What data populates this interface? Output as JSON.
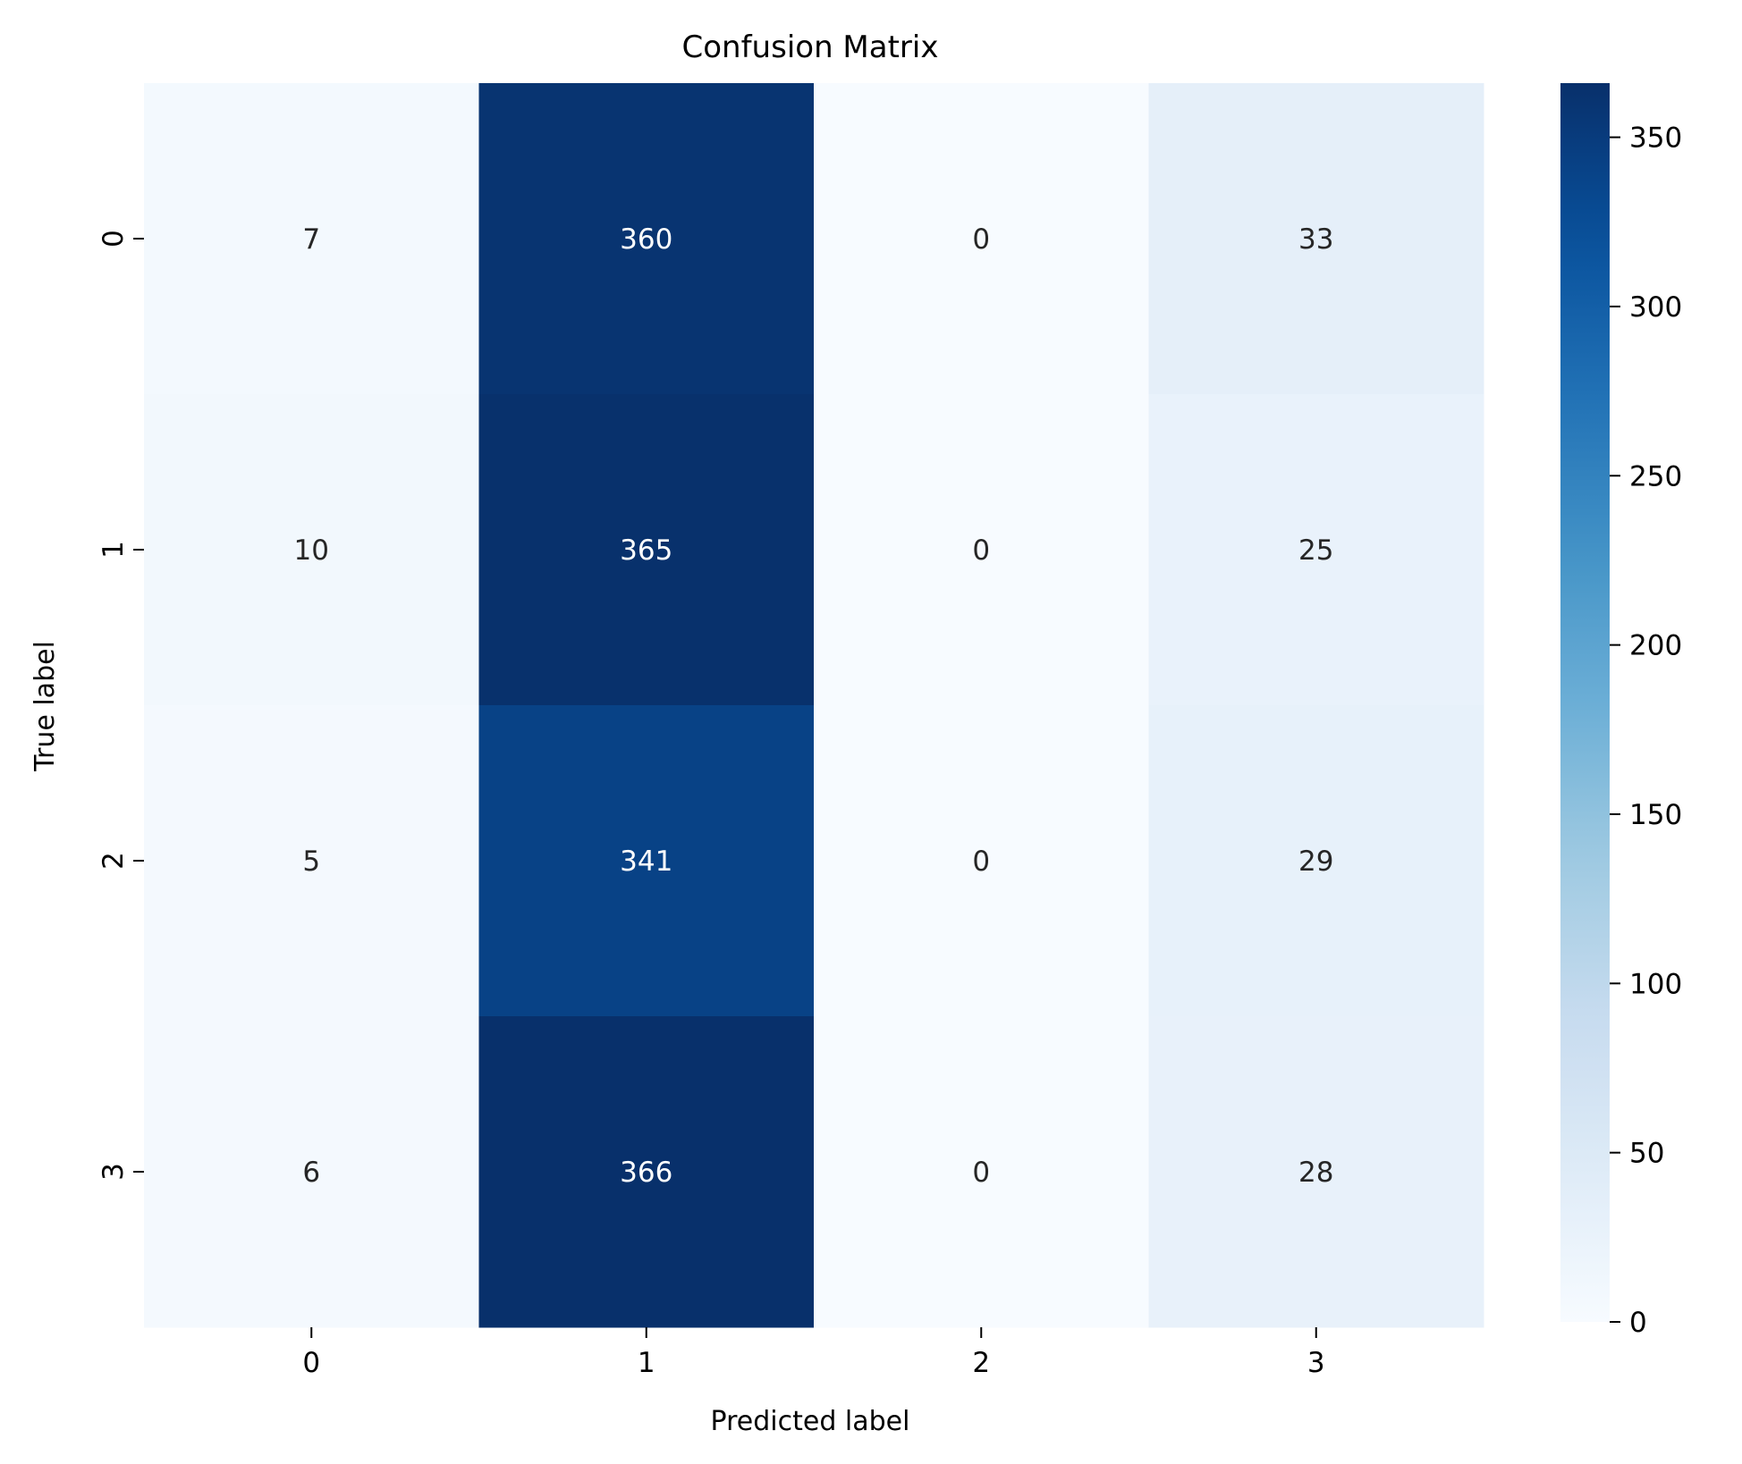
{
  "chart_data": {
    "type": "heatmap",
    "title": "Confusion Matrix",
    "xlabel": "Predicted label",
    "ylabel": "True label",
    "x_categories": [
      "0",
      "1",
      "2",
      "3"
    ],
    "y_categories": [
      "0",
      "1",
      "2",
      "3"
    ],
    "values": [
      [
        7,
        360,
        0,
        33
      ],
      [
        10,
        365,
        0,
        25
      ],
      [
        5,
        341,
        0,
        29
      ],
      [
        6,
        366,
        0,
        28
      ]
    ],
    "colormap": "Blues",
    "colorbar": {
      "range": [
        0,
        366
      ],
      "ticks": [
        0,
        50,
        100,
        150,
        200,
        250,
        300,
        350
      ],
      "tick_labels": [
        "0",
        "50",
        "100",
        "150",
        "200",
        "250",
        "300",
        "350"
      ]
    },
    "annotation_colors": {
      "dark_text": "#262626",
      "light_text": "#ffffff"
    }
  }
}
